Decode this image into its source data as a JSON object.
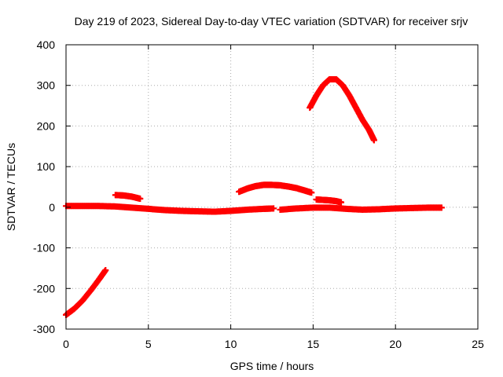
{
  "chart_data": {
    "type": "scatter",
    "title": "Day 219 of 2023, Sidereal Day-to-day VTEC variation (SDTVAR) for receiver srjv",
    "xlabel": "GPS time / hours",
    "ylabel": "SDTVAR / TECUs",
    "xlim": [
      0,
      25
    ],
    "ylim": [
      -300,
      400
    ],
    "xticks": [
      "0",
      "5",
      "10",
      "15",
      "20",
      "25"
    ],
    "yticks": [
      "-300",
      "-200",
      "-100",
      "0",
      "100",
      "200",
      "300",
      "400"
    ],
    "grid": true,
    "marker": "plus",
    "color": "#ff0000",
    "segments": [
      {
        "points": [
          [
            0.0,
            -265
          ],
          [
            0.5,
            -250
          ],
          [
            1.0,
            -230
          ],
          [
            1.5,
            -205
          ],
          [
            2.0,
            -178
          ],
          [
            2.4,
            -155
          ]
        ]
      },
      {
        "points": [
          [
            3.0,
            30
          ],
          [
            3.5,
            29
          ],
          [
            4.0,
            26
          ],
          [
            4.5,
            21
          ]
        ]
      },
      {
        "points": [
          [
            0.0,
            3
          ],
          [
            1.0,
            3
          ],
          [
            2.0,
            3
          ],
          [
            3.0,
            2
          ],
          [
            4.0,
            -1
          ],
          [
            5.0,
            -4
          ],
          [
            6.0,
            -7
          ],
          [
            7.0,
            -9
          ],
          [
            8.0,
            -10
          ],
          [
            9.0,
            -11
          ],
          [
            10.0,
            -9
          ],
          [
            11.0,
            -6
          ],
          [
            12.0,
            -4
          ],
          [
            12.6,
            -3
          ]
        ]
      },
      {
        "points": [
          [
            13.0,
            -6
          ],
          [
            14.0,
            -3
          ],
          [
            15.0,
            -1
          ],
          [
            16.0,
            -1
          ],
          [
            17.0,
            -4
          ],
          [
            18.0,
            -6
          ],
          [
            19.0,
            -5
          ],
          [
            20.0,
            -3
          ],
          [
            21.0,
            -2
          ],
          [
            22.0,
            -1
          ],
          [
            22.8,
            -1
          ]
        ]
      },
      {
        "points": [
          [
            10.5,
            38
          ],
          [
            11.0,
            46
          ],
          [
            11.5,
            52
          ],
          [
            12.0,
            55
          ],
          [
            12.5,
            55
          ],
          [
            13.0,
            54
          ],
          [
            13.5,
            51
          ],
          [
            14.0,
            47
          ],
          [
            14.5,
            41
          ],
          [
            14.9,
            36
          ]
        ]
      },
      {
        "points": [
          [
            15.2,
            19
          ],
          [
            15.6,
            18
          ],
          [
            16.0,
            17
          ],
          [
            16.4,
            15
          ],
          [
            16.7,
            12
          ]
        ]
      },
      {
        "points": [
          [
            14.8,
            245
          ],
          [
            15.2,
            275
          ],
          [
            15.6,
            300
          ],
          [
            16.0,
            315
          ],
          [
            16.4,
            315
          ],
          [
            16.8,
            300
          ],
          [
            17.2,
            275
          ],
          [
            17.6,
            245
          ],
          [
            18.0,
            215
          ],
          [
            18.4,
            190
          ],
          [
            18.7,
            165
          ]
        ]
      }
    ]
  }
}
